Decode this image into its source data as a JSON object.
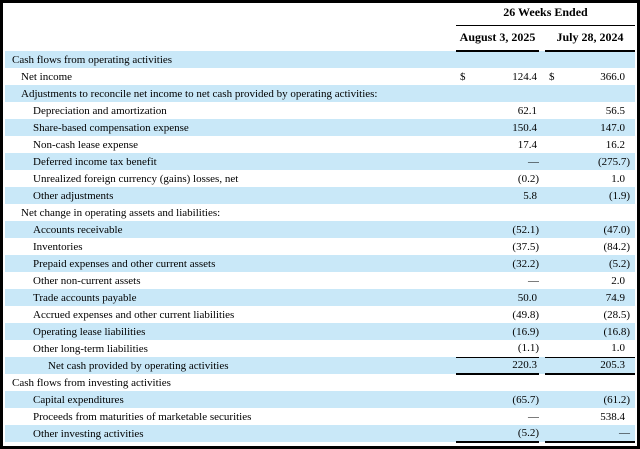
{
  "table": {
    "period_header": "26 Weeks Ended",
    "columns": [
      "August 3, 2025",
      "July 28, 2024"
    ],
    "currency_symbol": "$",
    "colors": {
      "row_shade_blue": "#c9e8f8",
      "border_black": "#000000",
      "text_black": "#000000"
    },
    "rows": [
      {
        "label": "Cash flows from operating activities",
        "indent": 0,
        "shade": true,
        "d1": "",
        "v1": "",
        "d2": "",
        "v2": "",
        "rule": "none"
      },
      {
        "label": "Net income",
        "indent": 1,
        "shade": false,
        "d1": "$",
        "v1": "124.4",
        "d2": "$",
        "v2": "366.0",
        "rule": "none"
      },
      {
        "label": "Adjustments to reconcile net income to net cash provided by operating activities:",
        "indent": 1,
        "shade": true,
        "d1": "",
        "v1": "",
        "d2": "",
        "v2": "",
        "rule": "none"
      },
      {
        "label": "Depreciation and amortization",
        "indent": 2,
        "shade": false,
        "d1": "",
        "v1": "62.1",
        "d2": "",
        "v2": "56.5",
        "rule": "none"
      },
      {
        "label": "Share-based compensation expense",
        "indent": 2,
        "shade": true,
        "d1": "",
        "v1": "150.4",
        "d2": "",
        "v2": "147.0",
        "rule": "none"
      },
      {
        "label": "Non-cash lease expense",
        "indent": 2,
        "shade": false,
        "d1": "",
        "v1": "17.4",
        "d2": "",
        "v2": "16.2",
        "rule": "none"
      },
      {
        "label": "Deferred income tax benefit",
        "indent": 2,
        "shade": true,
        "d1": "",
        "v1": "—",
        "d2": "",
        "v2": "(275.7)",
        "rule": "none"
      },
      {
        "label": "Unrealized foreign currency (gains) losses, net",
        "indent": 2,
        "shade": false,
        "d1": "",
        "v1": "(0.2)",
        "d2": "",
        "v2": "1.0",
        "rule": "none"
      },
      {
        "label": "Other adjustments",
        "indent": 2,
        "shade": true,
        "d1": "",
        "v1": "5.8",
        "d2": "",
        "v2": "(1.9)",
        "rule": "none"
      },
      {
        "label": "Net change in operating assets and liabilities:",
        "indent": 1,
        "shade": false,
        "d1": "",
        "v1": "",
        "d2": "",
        "v2": "",
        "rule": "none"
      },
      {
        "label": "Accounts receivable",
        "indent": 2,
        "shade": true,
        "d1": "",
        "v1": "(52.1)",
        "d2": "",
        "v2": "(47.0)",
        "rule": "none"
      },
      {
        "label": "Inventories",
        "indent": 2,
        "shade": false,
        "d1": "",
        "v1": "(37.5)",
        "d2": "",
        "v2": "(84.2)",
        "rule": "none"
      },
      {
        "label": "Prepaid expenses and other current assets",
        "indent": 2,
        "shade": true,
        "d1": "",
        "v1": "(32.2)",
        "d2": "",
        "v2": "(5.2)",
        "rule": "none"
      },
      {
        "label": "Other non-current assets",
        "indent": 2,
        "shade": false,
        "d1": "",
        "v1": "—",
        "d2": "",
        "v2": "2.0",
        "rule": "none"
      },
      {
        "label": "Trade accounts payable",
        "indent": 2,
        "shade": true,
        "d1": "",
        "v1": "50.0",
        "d2": "",
        "v2": "74.9",
        "rule": "none"
      },
      {
        "label": "Accrued expenses and other current liabilities",
        "indent": 2,
        "shade": false,
        "d1": "",
        "v1": "(49.8)",
        "d2": "",
        "v2": "(28.5)",
        "rule": "none"
      },
      {
        "label": "Operating lease liabilities",
        "indent": 2,
        "shade": true,
        "d1": "",
        "v1": "(16.9)",
        "d2": "",
        "v2": "(16.8)",
        "rule": "none"
      },
      {
        "label": "Other long-term liabilities",
        "indent": 2,
        "shade": false,
        "d1": "",
        "v1": "(1.1)",
        "d2": "",
        "v2": "1.0",
        "rule": "single"
      },
      {
        "label": "Net cash provided by operating activities",
        "indent": 3,
        "shade": true,
        "d1": "",
        "v1": "220.3",
        "d2": "",
        "v2": "205.3",
        "rule": "heavy"
      },
      {
        "label": "Cash flows from investing activities",
        "indent": 0,
        "shade": false,
        "d1": "",
        "v1": "",
        "d2": "",
        "v2": "",
        "rule": "none"
      },
      {
        "label": "Capital expenditures",
        "indent": 2,
        "shade": true,
        "d1": "",
        "v1": "(65.7)",
        "d2": "",
        "v2": "(61.2)",
        "rule": "none"
      },
      {
        "label": "Proceeds from maturities of marketable securities",
        "indent": 2,
        "shade": false,
        "d1": "",
        "v1": "—",
        "d2": "",
        "v2": "538.4",
        "rule": "none"
      },
      {
        "label": "Other investing activities",
        "indent": 2,
        "shade": true,
        "d1": "",
        "v1": "(5.2)",
        "d2": "",
        "v2": "—",
        "rule": "heavy"
      }
    ]
  }
}
